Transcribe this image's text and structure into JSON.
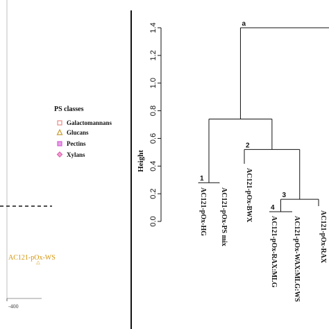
{
  "left_panel": {
    "legend": {
      "title": "PS classes",
      "items": [
        {
          "label": "Galactomannans",
          "color": "#e88a8a",
          "marker": "square"
        },
        {
          "label": "Glucans",
          "color": "#c99a2e",
          "marker": "triangle"
        },
        {
          "label": "Pectins",
          "color": "#d65cd6",
          "marker": "square"
        },
        {
          "label": "Xylans",
          "color": "#e05fb0",
          "marker": "diamond"
        }
      ]
    },
    "point_label": "AC121-pOx-WS",
    "point_color": "#d4940a",
    "x_tick_label": "-400"
  },
  "chart_data": {
    "type": "dendrogram",
    "ylabel": "Height",
    "yticks": [
      0.0,
      0.2,
      0.4,
      0.6,
      0.8,
      1.0,
      1.2,
      1.4
    ],
    "ylim": [
      0,
      1.5
    ],
    "leaves": [
      "AC121-pOx-HG",
      "AC121-pOx-PS mix",
      "AC121-pOx-BWX",
      "AC121-pOx-RAX:MLG",
      "AC121-pOx-WAX:MLG:WS",
      "AC121-pOx-RAX"
    ],
    "clusters": [
      {
        "id": "1",
        "height": 0.28
      },
      {
        "id": "4",
        "height": 0.07
      },
      {
        "id": "3",
        "height": 0.16
      },
      {
        "id": "2",
        "height": 0.52
      },
      {
        "id": "a",
        "height": 1.4
      }
    ],
    "merges": [
      {
        "label": "1",
        "height": 0.28,
        "left": "HG",
        "right": "PSmix"
      },
      {
        "label": "4",
        "height": 0.07,
        "left": "RAXMLG",
        "right": "WAXMLGWS"
      },
      {
        "label": "3",
        "height": 0.16,
        "left": "c4",
        "right": "RAX"
      },
      {
        "label": "2",
        "height": 0.52,
        "left": "BWX",
        "right": "c3"
      },
      {
        "label": "",
        "height": 0.74,
        "left": "c1",
        "right": "c2"
      },
      {
        "label": "a",
        "height": 1.4,
        "left": "c5",
        "right": "offscreen"
      }
    ]
  }
}
